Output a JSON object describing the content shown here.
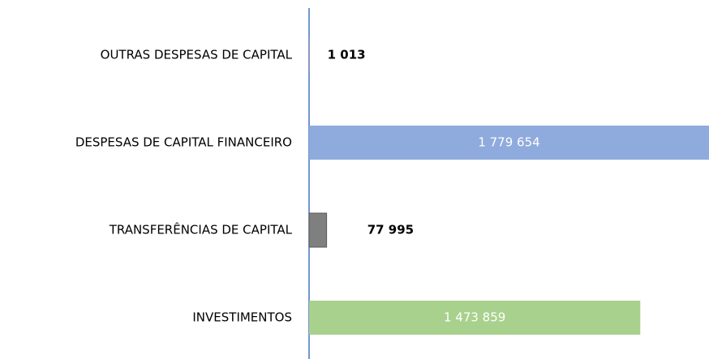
{
  "chart_data": {
    "type": "bar",
    "orientation": "horizontal",
    "categories": [
      "OUTRAS DESPESAS DE CAPITAL",
      "DESPESAS DE CAPITAL FINANCEIRO",
      "TRANSFERÊNCIAS DE CAPITAL",
      "INVESTIMENTOS"
    ],
    "values": [
      1013,
      1779654,
      77995,
      1473859
    ],
    "value_labels": [
      "1 013",
      "1 779 654",
      "77 995",
      "1 473 859"
    ],
    "colors": [
      "#ed7d31",
      "#8faadc",
      "#7f7f7f",
      "#a9d18e"
    ]
  }
}
